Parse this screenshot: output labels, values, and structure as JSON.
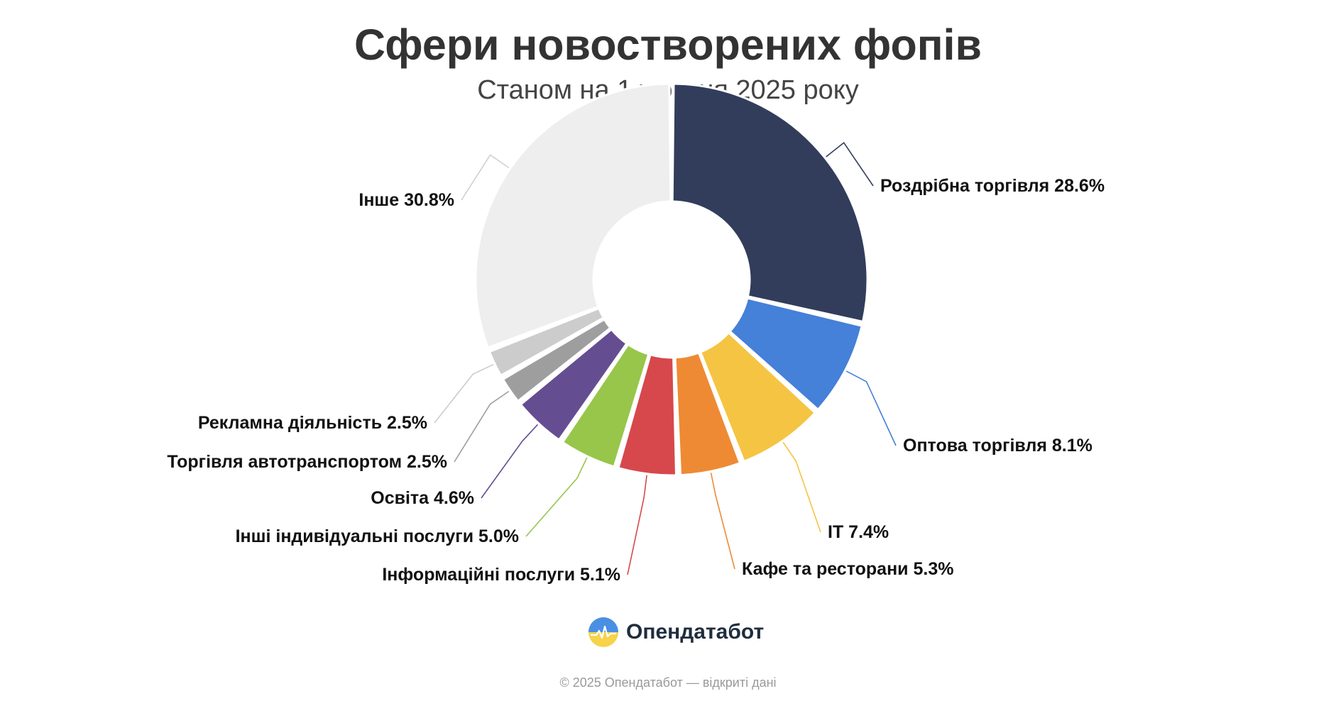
{
  "header": {
    "title": "Сфери новостворених фопів",
    "subtitle": "Станом на 1 жовтня 2025 року"
  },
  "chart_data": {
    "type": "donut",
    "title": "Сфери новостворених фопів",
    "subtitle": "Станом на 1 жовтня 2025 року",
    "unit": "%",
    "categories": [
      "Роздрібна торгівля",
      "Оптова торгівля",
      "IT",
      "Кафе та ресторани",
      "Інформаційні послуги",
      "Інші індивідуальні послуги",
      "Освіта",
      "Торгівля автотранспортом",
      "Рекламна діяльність",
      "Інше"
    ],
    "values": [
      28.6,
      8.1,
      7.4,
      5.3,
      5.1,
      5.0,
      4.6,
      2.5,
      2.5,
      30.8
    ],
    "labels": [
      "Роздрібна торгівля 28.6%",
      "Оптова торгівля 8.1%",
      "IT 7.4%",
      "Кафе та ресторани 5.3%",
      "Інформаційні послуги 5.1%",
      "Інші індивідуальні послуги 5.0%",
      "Освіта 4.6%",
      "Торгівля автотранспортом 2.5%",
      "Рекламна діяльність 2.5%",
      "Інше 30.8%"
    ],
    "colors": [
      "#323d5c",
      "#4580d9",
      "#f5c443",
      "#ee8a34",
      "#d6484c",
      "#97c64a",
      "#654d91",
      "#9e9e9e",
      "#cccccc",
      "#eeeeef"
    ],
    "legend": "none"
  },
  "brand": {
    "name": "Опендатабот"
  },
  "footer": {
    "text": "© 2025 Опендатабот — відкриті дані"
  }
}
